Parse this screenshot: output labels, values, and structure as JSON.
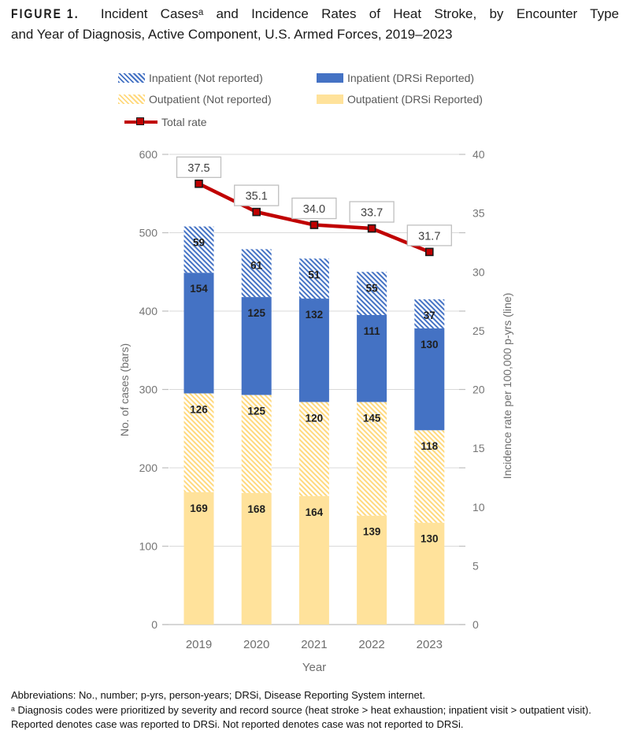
{
  "title": {
    "figure_label": "FIGURE 1.",
    "line1_rest": " Incident Casesᵃ and Incidence Rates of Heat Stroke, by Encounter Type",
    "line2": "and Year of Diagnosis, Active Component, U.S. Armed Forces, 2019–2023"
  },
  "legend": {
    "position": "top",
    "swatches": [
      "hatch-blue",
      "solid-blue",
      "hatch-yellow",
      "solid-yellow",
      "red-line-marker"
    ]
  },
  "chart_data": {
    "type": "bar",
    "subtype": "stacked bars with secondary-axis line (combo)",
    "categories": [
      "2019",
      "2020",
      "2021",
      "2022",
      "2023"
    ],
    "series": [
      {
        "name": "Outpatient (DRSi Reported)",
        "style": "solid-yellow",
        "values": [
          169,
          168,
          164,
          139,
          130
        ]
      },
      {
        "name": "Outpatient (Not reported)",
        "style": "hatch-yellow",
        "values": [
          126,
          125,
          120,
          145,
          118
        ]
      },
      {
        "name": "Inpatient (DRSi Reported)",
        "style": "solid-blue",
        "values": [
          154,
          125,
          132,
          111,
          130
        ]
      },
      {
        "name": "Inpatient (Not reported)",
        "style": "hatch-blue",
        "values": [
          59,
          61,
          51,
          55,
          37
        ]
      }
    ],
    "line": {
      "name": "Total rate",
      "values": [
        37.5,
        35.1,
        34.0,
        33.7,
        31.7
      ],
      "labels": [
        "37.5",
        "35.1",
        "34.0",
        "33.7",
        "31.7"
      ]
    },
    "x_axis": {
      "label": "Year"
    },
    "left_axis": {
      "label": "No. of cases (bars)",
      "min": 0,
      "max": 600,
      "step": 100
    },
    "right_axis": {
      "label": "Incidence rate per 100,000 p-yrs (line)",
      "min": 0,
      "max": 40,
      "step": 5
    },
    "grid": true,
    "legend_position": "top",
    "colors": {
      "blue": "#4472C4",
      "yellow": "#FFE29B",
      "yellow_hatch": "#FFD97E",
      "line_red": "#C00000",
      "marker_border": "#1a1a1a",
      "grid": "#D9D9D9",
      "axis_line": "#BFBFBF",
      "rate_label_border": "#BFBFBF"
    }
  },
  "footnotes": {
    "abbreviations": "Abbreviations: No., number; p-yrs, person-years; DRSi, Disease Reporting System internet.",
    "note": "ᵃ Diagnosis codes were prioritized by severity and record source (heat stroke > heat exhaustion; inpatient visit > outpatient visit). Reported denotes case was reported to DRSi. Not reported denotes case was not reported to DRSi."
  }
}
